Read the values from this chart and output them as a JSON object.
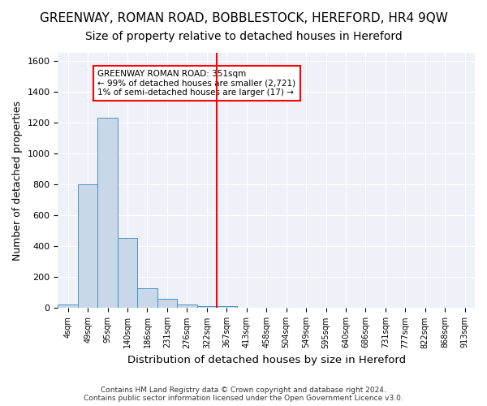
{
  "title": "GREENWAY, ROMAN ROAD, BOBBLESTOCK, HEREFORD, HR4 9QW",
  "subtitle": "Size of property relative to detached houses in Hereford",
  "xlabel": "Distribution of detached houses by size in Hereford",
  "ylabel": "Number of detached properties",
  "footer_line1": "Contains HM Land Registry data © Crown copyright and database right 2024.",
  "footer_line2": "Contains public sector information licensed under the Open Government Licence v3.0.",
  "bin_labels": [
    "4sqm",
    "49sqm",
    "95sqm",
    "140sqm",
    "186sqm",
    "231sqm",
    "276sqm",
    "322sqm",
    "367sqm",
    "413sqm",
    "458sqm",
    "504sqm",
    "549sqm",
    "595sqm",
    "640sqm",
    "686sqm",
    "731sqm",
    "777sqm",
    "822sqm",
    "868sqm",
    "913sqm"
  ],
  "bar_values": [
    25,
    800,
    1230,
    455,
    130,
    60,
    25,
    15,
    15,
    0,
    0,
    0,
    0,
    0,
    0,
    0,
    0,
    0,
    0,
    0,
    0
  ],
  "bar_color": "#c8d8e8",
  "bar_edge_color": "#4a90c4",
  "vline_x_index": 8,
  "vline_color": "red",
  "annotation_text": "GREENWAY ROMAN ROAD: 351sqm\n← 99% of detached houses are smaller (2,721)\n1% of semi-detached houses are larger (17) →",
  "annotation_box_color": "white",
  "annotation_box_edgecolor": "red",
  "ylim": [
    0,
    1650
  ],
  "yticks": [
    0,
    200,
    400,
    600,
    800,
    1000,
    1200,
    1400,
    1600
  ],
  "bg_color": "#eef2f8",
  "grid_color": "white",
  "title_fontsize": 11,
  "subtitle_fontsize": 10,
  "axis_label_fontsize": 9
}
